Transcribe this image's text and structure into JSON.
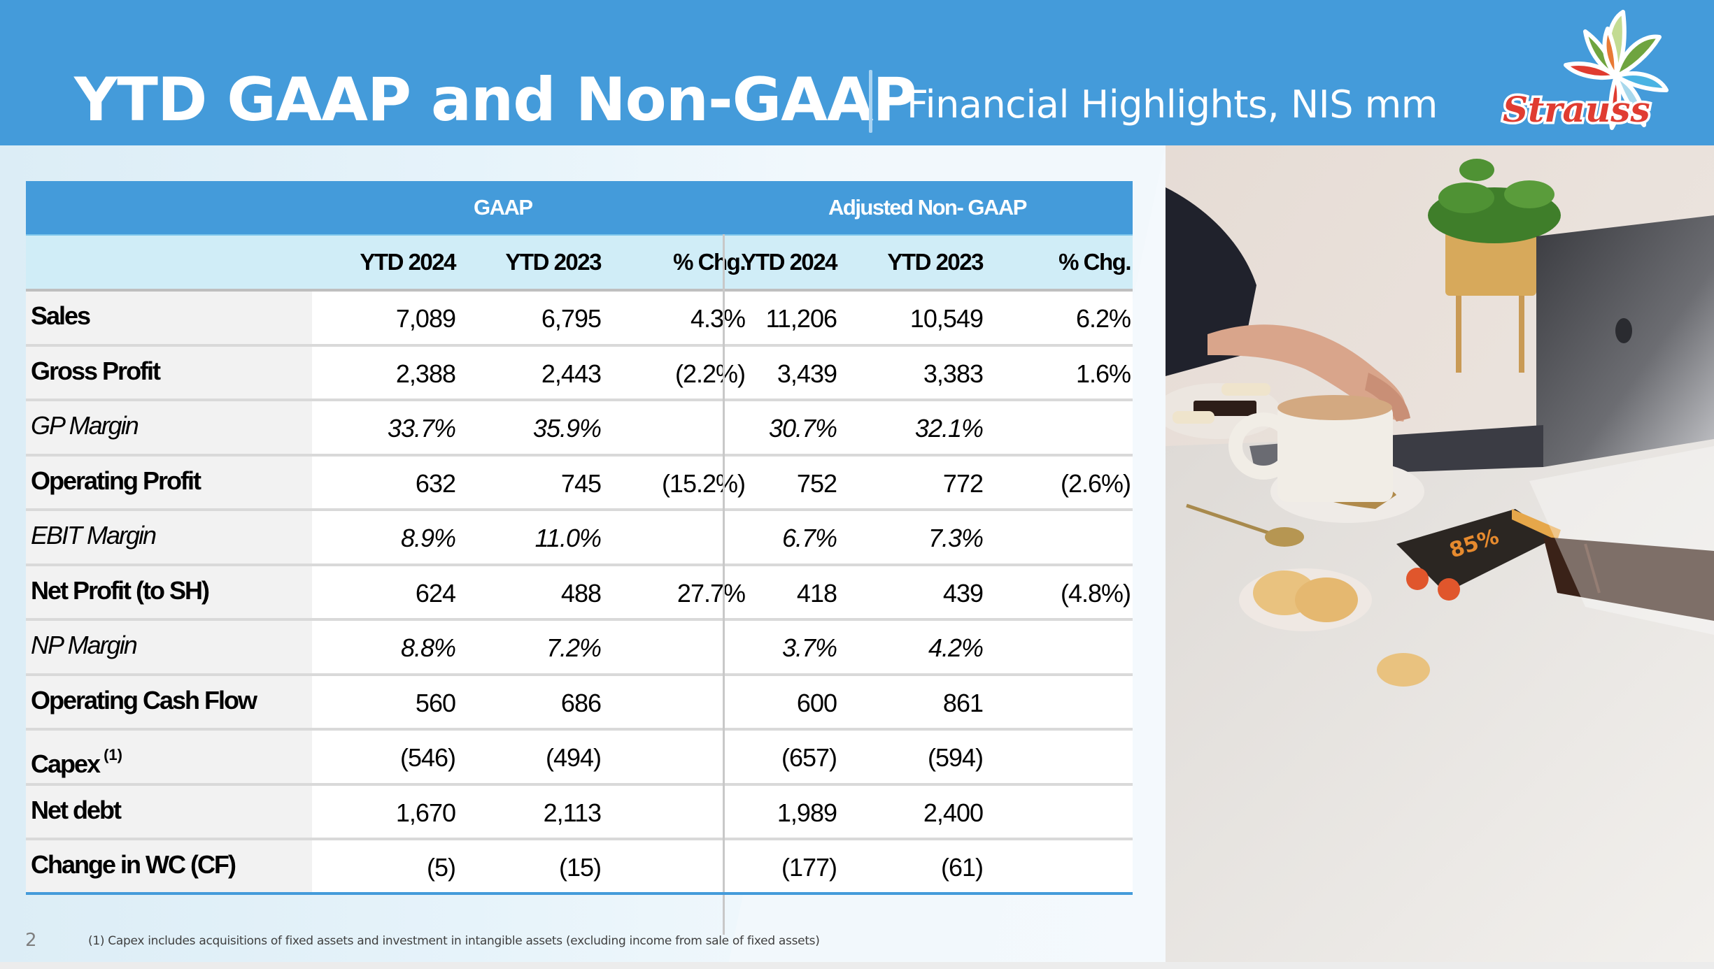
{
  "slide": {
    "title": "YTD GAAP and Non-GAAP",
    "separator": "|",
    "subtitle": "Financial Highlights, NIS mm",
    "logo_text": "Strauss",
    "page_number": "2",
    "footnote": "(1) Capex includes acquisitions of fixed assets and investment in intangible assets (excluding income from sale of fixed assets)"
  },
  "colors": {
    "brand_blue": "#449bda",
    "subheader_bg": "#d0edf7",
    "label_bg": "#f2f2f2",
    "logo_red": "#e03c31"
  },
  "table": {
    "group_headers": [
      "GAAP",
      "Adjusted Non- GAAP"
    ],
    "columns": [
      "YTD 2024",
      "YTD 2023",
      "% Chg.",
      "YTD 2024",
      "YTD 2023",
      "% Chg."
    ],
    "rows": [
      {
        "label": "Sales",
        "style": "bold",
        "values": [
          "7,089",
          "6,795",
          "4.3%",
          "11,206",
          "10,549",
          "6.2%"
        ]
      },
      {
        "label": "Gross Profit",
        "style": "bold",
        "values": [
          "2,388",
          "2,443",
          "(2.2%)",
          "3,439",
          "3,383",
          "1.6%"
        ]
      },
      {
        "label": "GP Margin",
        "style": "italic",
        "values": [
          "33.7%",
          "35.9%",
          "",
          "30.7%",
          "32.1%",
          ""
        ]
      },
      {
        "label": "Operating Profit",
        "style": "bold",
        "values": [
          "632",
          "745",
          "(15.2%)",
          "752",
          "772",
          "(2.6%)"
        ]
      },
      {
        "label": "EBIT Margin",
        "style": "italic",
        "values": [
          "8.9%",
          "11.0%",
          "",
          "6.7%",
          "7.3%",
          ""
        ]
      },
      {
        "label": "Net Profit (to SH)",
        "style": "bold",
        "values": [
          "624",
          "488",
          "27.7%",
          "418",
          "439",
          "(4.8%)"
        ]
      },
      {
        "label": "NP Margin",
        "style": "italic",
        "values": [
          "8.8%",
          "7.2%",
          "",
          "3.7%",
          "4.2%",
          ""
        ]
      },
      {
        "label": "Operating Cash Flow",
        "style": "bold",
        "values": [
          "560",
          "686",
          "",
          "600",
          "861",
          ""
        ]
      },
      {
        "label": "Capex",
        "footnote_ref": "(1)",
        "style": "bold",
        "values": [
          "(546)",
          "(494)",
          "",
          "(657)",
          "(594)",
          ""
        ]
      },
      {
        "label": "Net debt",
        "style": "bold",
        "values": [
          "1,670",
          "2,113",
          "",
          "1,989",
          "2,400",
          ""
        ]
      },
      {
        "label": "Change in WC (CF)",
        "style": "bold",
        "values": [
          "(5)",
          "(15)",
          "",
          "(177)",
          "(61)",
          ""
        ]
      }
    ]
  }
}
